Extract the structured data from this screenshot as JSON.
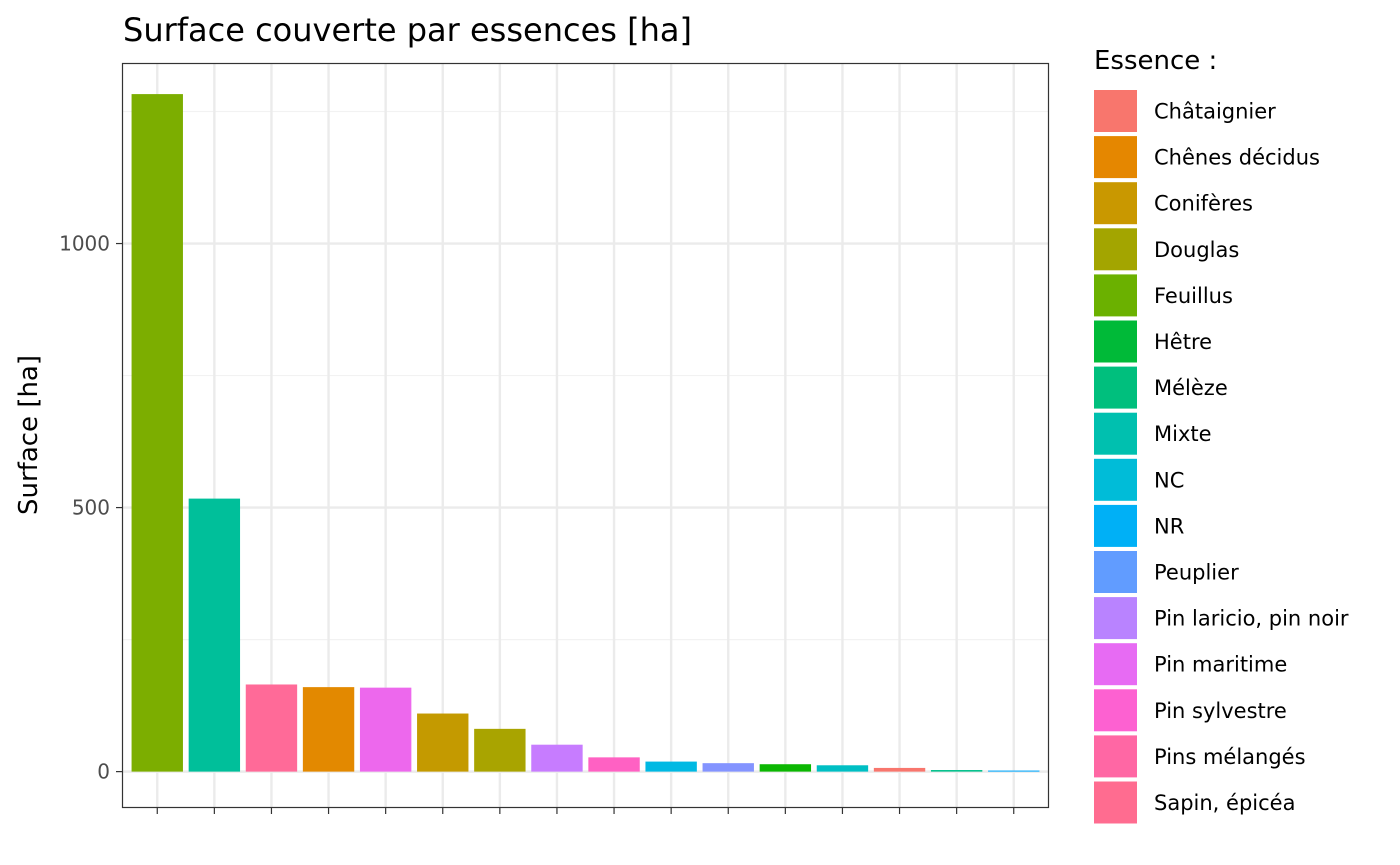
{
  "chart_data": {
    "type": "bar",
    "title": "Surface couverte par essences [ha]",
    "xlabel": "",
    "ylabel": "Surface [ha]",
    "ylim": [
      -67,
      1340
    ],
    "yticks": [
      0,
      500,
      1000
    ],
    "grid": true,
    "legend_title": "Essence :",
    "legend_position": "right",
    "legend": [
      {
        "name": "Châtaignier",
        "color": "#F8766D"
      },
      {
        "name": "Chênes décidus",
        "color": "#E58700"
      },
      {
        "name": "Conifères",
        "color": "#C99800"
      },
      {
        "name": "Douglas",
        "color": "#A3A500"
      },
      {
        "name": "Feuillus",
        "color": "#6BB100"
      },
      {
        "name": "Hêtre",
        "color": "#00BA38"
      },
      {
        "name": "Mélèze",
        "color": "#00BF7D"
      },
      {
        "name": "Mixte",
        "color": "#00C0AF"
      },
      {
        "name": "NC",
        "color": "#00BCD8"
      },
      {
        "name": "NR",
        "color": "#00B0F6"
      },
      {
        "name": "Peuplier",
        "color": "#619CFF"
      },
      {
        "name": "Pin laricio, pin noir",
        "color": "#B983FF"
      },
      {
        "name": "Pin maritime",
        "color": "#E76BF3"
      },
      {
        "name": "Pin sylvestre",
        "color": "#FD61D1"
      },
      {
        "name": "Pins mélangés",
        "color": "#FF67A4"
      },
      {
        "name": "Sapin, épicéa",
        "color": "#FF6C90"
      }
    ],
    "bars": [
      {
        "essence": "Feuillus",
        "value": 1283,
        "color": "#7CAE00"
      },
      {
        "essence": "Mixte",
        "value": 517,
        "color": "#00BF9A"
      },
      {
        "essence": "Sapin, épicéa",
        "value": 165,
        "color": "#FF6A98"
      },
      {
        "essence": "Chênes décidus",
        "value": 160,
        "color": "#E38900"
      },
      {
        "essence": "Pin sylvestre",
        "value": 159,
        "color": "#ED68ED"
      },
      {
        "essence": "Conifères",
        "value": 110,
        "color": "#C49A00"
      },
      {
        "essence": "Douglas",
        "value": 81,
        "color": "#A9A400"
      },
      {
        "essence": "Pin maritime",
        "value": 51,
        "color": "#C77CFF"
      },
      {
        "essence": "Pins mélangés",
        "value": 27,
        "color": "#FF61C3"
      },
      {
        "essence": "NR",
        "value": 19,
        "color": "#00B9E3"
      },
      {
        "essence": "Pin laricio, pin noir",
        "value": 16,
        "color": "#8494FF"
      },
      {
        "essence": "Hêtre",
        "value": 14,
        "color": "#0CB702"
      },
      {
        "essence": "NC",
        "value": 12,
        "color": "#00BFC4"
      },
      {
        "essence": "Châtaignier",
        "value": 7,
        "color": "#F8766D"
      },
      {
        "essence": "Mélèze",
        "value": 3,
        "color": "#00C08B"
      },
      {
        "essence": "Peuplier",
        "value": 2,
        "color": "#00A9FF"
      }
    ]
  }
}
